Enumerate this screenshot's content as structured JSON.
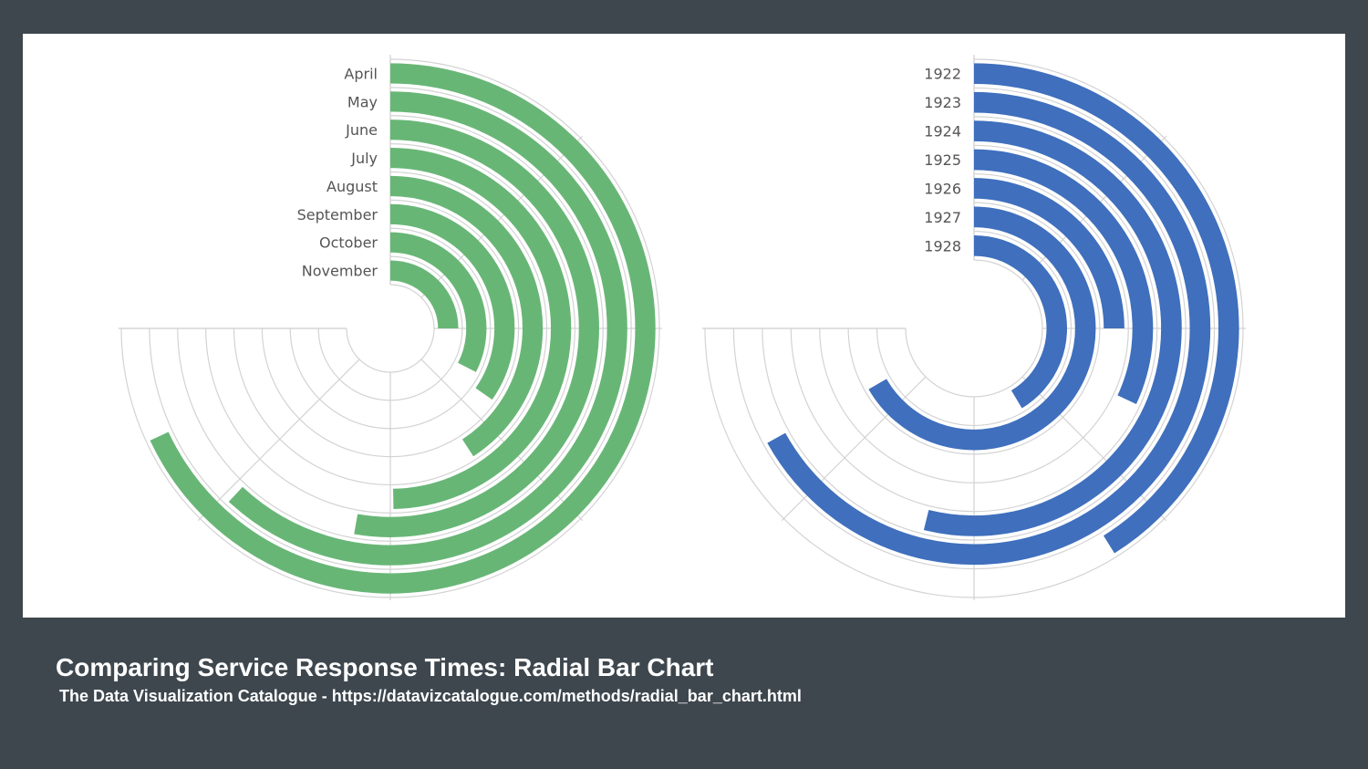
{
  "caption": {
    "title": "Comparing Service Response Times: Radial Bar Chart",
    "source": "The Data Visualization Catalogue - https://datavizcatalogue.com/methods/radial_bar_chart.html"
  },
  "colors": {
    "background": "#3e474e",
    "panel": "#ffffff",
    "grid": "#d3d3d3",
    "left_bars": "#68b676",
    "right_bars": "#3f6fbd"
  },
  "chart_data": [
    {
      "type": "radial-bar",
      "title": "",
      "angle_range_degrees": [
        0,
        270
      ],
      "grid": true,
      "categories": [
        "April",
        "May",
        "June",
        "July",
        "August",
        "September",
        "October",
        "November"
      ],
      "values_degrees": [
        245,
        223,
        190,
        179,
        147,
        125,
        117,
        90
      ],
      "color": "#68b676"
    },
    {
      "type": "radial-bar",
      "title": "",
      "angle_range_degrees": [
        0,
        270
      ],
      "grid": true,
      "categories": [
        "1922",
        "1923",
        "1924",
        "1925",
        "1926",
        "1927",
        "1928"
      ],
      "values_degrees": [
        148,
        241,
        194,
        115,
        90,
        240,
        149
      ],
      "color": "#3f6fbd"
    }
  ]
}
